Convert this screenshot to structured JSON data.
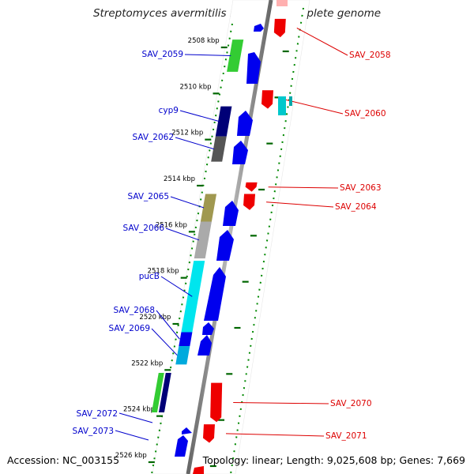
{
  "title": "Streptomyces avermitilis MA-4680, complete genome",
  "footer": {
    "accession": "Accession: NC_003155",
    "topology": "Topology: linear; Length: 9,025,608 bp; Genes: 7,669"
  },
  "ticks": [
    {
      "label": "2508 kbp",
      "kbp": 2508
    },
    {
      "label": "2510 kbp",
      "kbp": 2510
    },
    {
      "label": "2512 kbp",
      "kbp": 2512
    },
    {
      "label": "2514 kbp",
      "kbp": 2514
    },
    {
      "label": "2516 kbp",
      "kbp": 2516
    },
    {
      "label": "2518 kbp",
      "kbp": 2518
    },
    {
      "label": "2520 kbp",
      "kbp": 2520
    },
    {
      "label": "2522 kbp",
      "kbp": 2522
    },
    {
      "label": "2524 kbp",
      "kbp": 2524
    },
    {
      "label": "2526 kbp",
      "kbp": 2526
    }
  ],
  "genes_left": [
    {
      "name": "SAV_2059",
      "start": 2507.9,
      "end": 2509.3,
      "color": "#33cc33"
    },
    {
      "name": "cyp9",
      "start": 2510.8,
      "end": 2512.1,
      "color": "#000077"
    },
    {
      "name": "SAV_2062",
      "start": 2512.1,
      "end": 2513.2,
      "color": "#555555"
    },
    {
      "name": "SAV_2065",
      "start": 2514.6,
      "end": 2515.8,
      "color": "#a09850"
    },
    {
      "name": "SAV_2066",
      "start": 2515.8,
      "end": 2517.4,
      "color": "#aaaaaa"
    },
    {
      "name": "pucB",
      "start": 2517.5,
      "end": 2520.6,
      "color": "#00e5ee"
    },
    {
      "name": "SAV_2068",
      "start": 2520.6,
      "end": 2521.2,
      "color": "#0000ee"
    },
    {
      "name": "SAV_2069",
      "start": 2521.2,
      "end": 2522.0,
      "color": "#00aadd"
    }
  ],
  "genes_right": [
    {
      "name": "SAV_2058",
      "start": 2507.0,
      "end": 2507.8,
      "color": "#ee0000"
    },
    {
      "name": "SAV_2060",
      "start": 2510.1,
      "end": 2510.9,
      "color": "#ee0000"
    },
    {
      "name": "SAV_2063",
      "start": 2514.1,
      "end": 2514.5,
      "color": "#ee0000"
    },
    {
      "name": "SAV_2064",
      "start": 2514.6,
      "end": 2515.3,
      "color": "#ee0000"
    },
    {
      "name": "SAV_2070",
      "start": 2522.8,
      "end": 2524.5,
      "color": "#ee0000"
    },
    {
      "name": "SAV_2071",
      "start": 2524.6,
      "end": 2525.4,
      "color": "#ee0000"
    }
  ]
}
